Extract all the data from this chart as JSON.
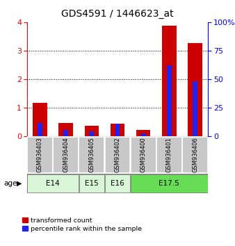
{
  "title": "GDS4591 / 1446623_at",
  "samples": [
    "GSM936403",
    "GSM936404",
    "GSM936405",
    "GSM936402",
    "GSM936400",
    "GSM936401",
    "GSM936406"
  ],
  "transformed_count": [
    1.18,
    0.47,
    0.38,
    0.46,
    0.22,
    3.87,
    3.27
  ],
  "percentile_rank_pct": [
    11.8,
    5.5,
    4.5,
    11.5,
    2.5,
    62.5,
    48.0
  ],
  "age_groups": [
    {
      "label": "E14",
      "start": 0,
      "end": 2,
      "color": "#d8f5d8"
    },
    {
      "label": "E15",
      "start": 2,
      "end": 3,
      "color": "#d8f5d8"
    },
    {
      "label": "E16",
      "start": 3,
      "end": 4,
      "color": "#d8f5d8"
    },
    {
      "label": "E17.5",
      "start": 4,
      "end": 7,
      "color": "#66dd55"
    }
  ],
  "bar_color_red": "#cc0000",
  "bar_color_blue": "#2222ee",
  "ylim_left": [
    0,
    4
  ],
  "ylim_right": [
    0,
    100
  ],
  "yticks_left": [
    0,
    1,
    2,
    3,
    4
  ],
  "yticks_right": [
    0,
    25,
    50,
    75,
    100
  ],
  "ytick_labels_right": [
    "0",
    "25",
    "50",
    "75",
    "100%"
  ],
  "legend_red_label": "transformed count",
  "legend_blue_label": "percentile rank within the sample",
  "background_color": "#ffffff",
  "sample_box_color": "#c8c8c8",
  "title_fontsize": 10,
  "tick_fontsize": 8,
  "age_label": "age"
}
